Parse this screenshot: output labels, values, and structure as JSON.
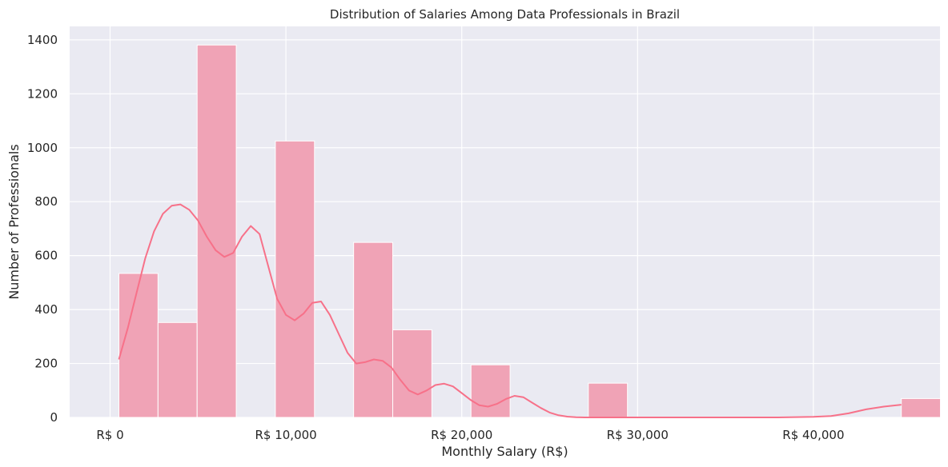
{
  "chart_data": {
    "type": "bar",
    "title": "Distribution of Salaries Among Data Professionals in Brazil",
    "xlabel": "Monthly Salary (R$)",
    "ylabel": "Number of Professionals",
    "xlim": [
      -2300,
      47200
    ],
    "ylim": [
      0,
      1450
    ],
    "x_ticks": [
      {
        "value": 0,
        "label": "R$ 0"
      },
      {
        "value": 10000,
        "label": "R$ 10,000"
      },
      {
        "value": 20000,
        "label": "R$ 20,000"
      },
      {
        "value": 30000,
        "label": "R$ 30,000"
      },
      {
        "value": 40000,
        "label": "R$ 40,000"
      }
    ],
    "y_ticks": [
      {
        "value": 0,
        "label": "0"
      },
      {
        "value": 200,
        "label": "200"
      },
      {
        "value": 400,
        "label": "400"
      },
      {
        "value": 600,
        "label": "600"
      },
      {
        "value": 800,
        "label": "800"
      },
      {
        "value": 1000,
        "label": "1000"
      },
      {
        "value": 1200,
        "label": "1200"
      },
      {
        "value": 1400,
        "label": "1400"
      }
    ],
    "bin_start": 500,
    "bin_width": 2225,
    "counts": [
      534,
      352,
      1381,
      0,
      1025,
      0,
      649,
      325,
      0,
      195,
      0,
      0,
      127,
      0,
      0,
      0,
      0,
      0,
      0,
      0,
      70
    ],
    "kde": {
      "x": [
        500,
        1000,
        1500,
        2000,
        2500,
        3000,
        3500,
        4000,
        4500,
        5000,
        5500,
        6000,
        6500,
        7000,
        7500,
        8000,
        8500,
        9000,
        9500,
        10000,
        10500,
        11000,
        11500,
        12000,
        12500,
        13000,
        13500,
        14000,
        14500,
        15000,
        15500,
        16000,
        16500,
        17000,
        17500,
        18000,
        18500,
        19000,
        19500,
        20000,
        20500,
        21000,
        21500,
        22000,
        22500,
        23000,
        23500,
        24000,
        24500,
        25000,
        25500,
        26000,
        26500,
        27000,
        27500,
        28000,
        28500,
        29000,
        29500,
        30000,
        31000,
        32000,
        34000,
        36000,
        38000,
        40000,
        41000,
        42000,
        43000,
        44000,
        45000
      ],
      "y": [
        215,
        330,
        460,
        590,
        690,
        755,
        785,
        790,
        770,
        730,
        670,
        620,
        595,
        610,
        670,
        710,
        680,
        560,
        440,
        380,
        360,
        385,
        425,
        430,
        380,
        310,
        240,
        200,
        205,
        215,
        210,
        185,
        140,
        100,
        85,
        100,
        120,
        125,
        115,
        90,
        65,
        45,
        40,
        50,
        68,
        80,
        75,
        55,
        35,
        18,
        8,
        3,
        1,
        0,
        0,
        0,
        0,
        0,
        0,
        0,
        0,
        0,
        0,
        0,
        0,
        2,
        5,
        15,
        30,
        40,
        47
      ]
    },
    "grid": true,
    "colors": {
      "background": "#eaeaf2",
      "grid": "#ffffff",
      "bar_fill": "#f0a3b6",
      "bar_edge": "#ffffff",
      "kde_line": "#f77189"
    }
  }
}
